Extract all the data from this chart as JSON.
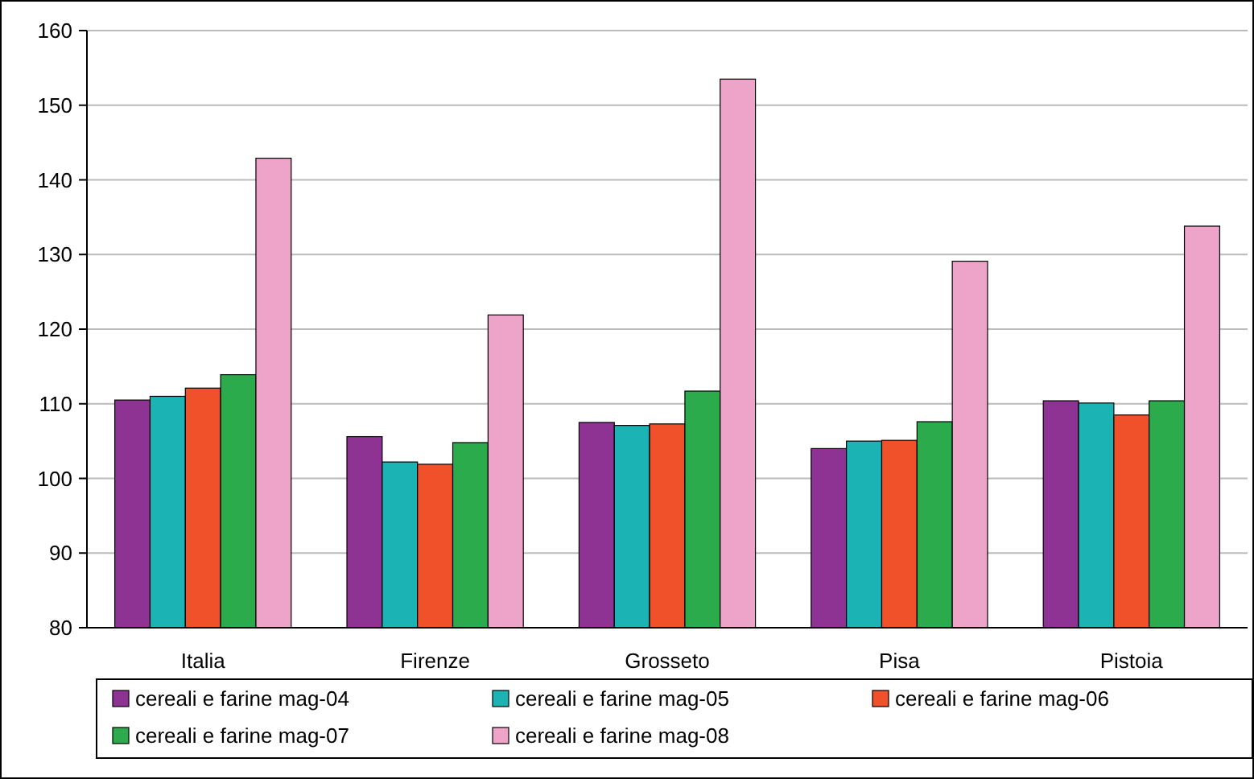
{
  "chart_data": {
    "type": "bar",
    "categories": [
      "Italia",
      "Firenze",
      "Grosseto",
      "Pisa",
      "Pistoia"
    ],
    "series": [
      {
        "name": "cereali e farine mag-04",
        "color": "#8e3394",
        "values": [
          110.5,
          105.6,
          107.5,
          104,
          110.4
        ]
      },
      {
        "name": "cereali e farine mag-05",
        "color": "#1bb3b3",
        "values": [
          111,
          102.2,
          107.1,
          105,
          110.1
        ]
      },
      {
        "name": "cereali e farine mag-06",
        "color": "#f0502a",
        "values": [
          112.1,
          101.9,
          107.3,
          105.1,
          108.5
        ]
      },
      {
        "name": "cereali e farine mag-07",
        "color": "#2bab4b",
        "values": [
          113.9,
          104.8,
          111.7,
          107.6,
          110.4
        ]
      },
      {
        "name": "cereali e farine mag-08",
        "color": "#eea4c8",
        "values": [
          142.9,
          121.9,
          153.5,
          129.1,
          133.8
        ]
      }
    ],
    "ylim": [
      80,
      160
    ],
    "yticks": [
      80,
      90,
      100,
      110,
      120,
      130,
      140,
      150,
      160
    ],
    "grid": "y",
    "legend": "bottom"
  }
}
